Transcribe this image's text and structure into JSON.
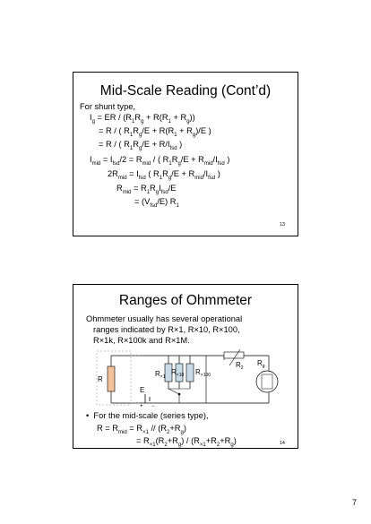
{
  "slide1": {
    "title": "Mid-Scale Reading (Cont’d)",
    "intro": "For shunt type,",
    "equations": [
      "Iᵧ = ER / (R₁Rᵧ + R(R₁ + Rᵧ))",
      "= R / ( R₁Rᵧ/E + R(R₁ + Rᵧ)/E )",
      "= R / ( R₁Rᵧ/E + R/I_fsd )",
      "I_mid = I_fsd/2 = R_mid / ( R₁Rᵧ/E + R_mid/I_fsd )",
      "2R_mid = I_fsd ( R₁Rᵧ/E + R_mid/I_fsd )",
      "R_mid = R₁RᵧI_fsd/E",
      "= (V_fsd/E) R₁"
    ],
    "slide_number": "13"
  },
  "slide2": {
    "title": "Ranges of Ohmmeter",
    "text_lines": [
      "Ohmmeter usually has several operational",
      "ranges indicated by R×1, R×10, R×100,",
      "R×1k, R×100k and R×1M."
    ],
    "circuit": {
      "label_R": "R",
      "label_R1": "R",
      "label_R1_sub": "×1",
      "label_R10": "R",
      "label_R10_sub": "×10",
      "label_R100": "R",
      "label_R100_sub": "×100",
      "label_R2": "R",
      "label_R2_sub": "2",
      "label_Rg": "R",
      "label_Rg_sub": "g",
      "label_E": "E",
      "label_plus": "+",
      "label_minus": "−"
    },
    "bullet": "For the mid-scale (series type),",
    "eq1": "R = R_mid = R×1 // (R₂+Rᵧ)",
    "eq2": "= R×1(R₂+Rᵧ) / (R×1+R₂+Rᵧ)",
    "slide_number": "14"
  },
  "page_number": "7"
}
